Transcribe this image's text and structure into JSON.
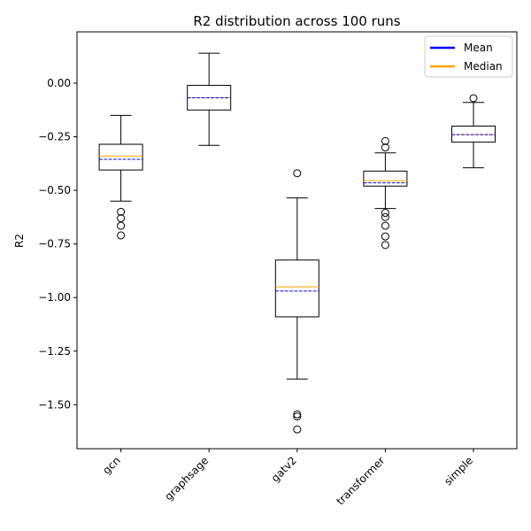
{
  "chart_data": {
    "type": "box",
    "title": "R2 distribution across 100 runs",
    "xlabel": "",
    "ylabel": "R2",
    "ylim": [
      -1.72,
      0.23
    ],
    "yticks": [
      0.0,
      -0.25,
      -0.5,
      -0.75,
      -1.0,
      -1.25,
      -1.5
    ],
    "ytick_labels": [
      "0.00",
      "−0.25",
      "−0.50",
      "−0.75",
      "−1.00",
      "−1.25",
      "−1.50"
    ],
    "categories": [
      "gcn",
      "graphsage",
      "gatv2",
      "transformer",
      "simple"
    ],
    "boxes": [
      {
        "name": "gcn",
        "whislo": -0.55,
        "q1": -0.405,
        "median": -0.34,
        "mean": -0.355,
        "q3": -0.285,
        "whishi": -0.15,
        "fliers": [
          -0.6,
          -0.63,
          -0.665,
          -0.71
        ]
      },
      {
        "name": "graphsage",
        "whislo": -0.29,
        "q1": -0.125,
        "median": -0.068,
        "mean": -0.068,
        "q3": -0.01,
        "whishi": 0.14,
        "fliers": []
      },
      {
        "name": "gatv2",
        "whislo": -1.38,
        "q1": -1.09,
        "median": -0.95,
        "mean": -0.97,
        "q3": -0.825,
        "whishi": -0.535,
        "fliers": [
          -0.42,
          -1.545,
          -1.555,
          -1.615
        ]
      },
      {
        "name": "transformer",
        "whislo": -0.585,
        "q1": -0.48,
        "median": -0.455,
        "mean": -0.465,
        "q3": -0.41,
        "whishi": -0.325,
        "fliers": [
          -0.27,
          -0.3,
          -0.605,
          -0.625,
          -0.665,
          -0.715,
          -0.755
        ]
      },
      {
        "name": "simple",
        "whislo": -0.395,
        "q1": -0.275,
        "median": -0.24,
        "mean": -0.24,
        "q3": -0.2,
        "whishi": -0.09,
        "fliers": [
          -0.07
        ]
      }
    ],
    "legend": {
      "placement": "top-right",
      "entries": [
        {
          "label": "Mean",
          "color": "#0000ff"
        },
        {
          "label": "Median",
          "color": "#ffa500"
        }
      ]
    },
    "colors": {
      "mean": "#0000ff",
      "median": "#ffa500",
      "box": "#000000"
    },
    "grid": false
  }
}
